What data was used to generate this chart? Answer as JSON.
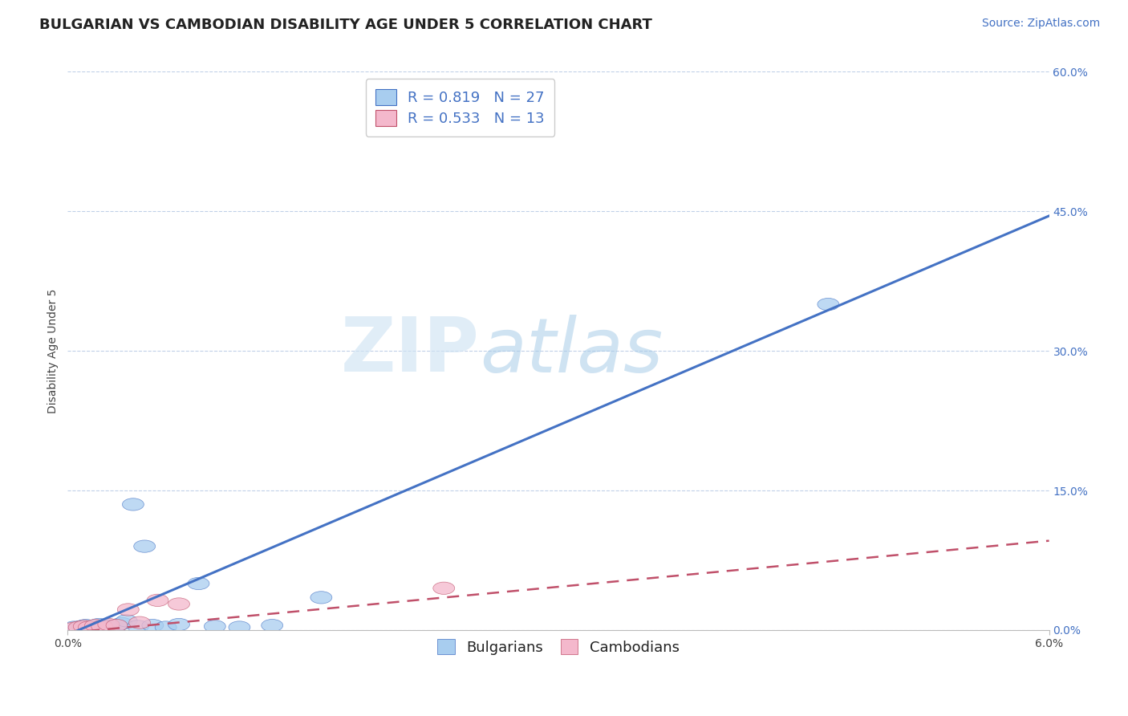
{
  "title": "BULGARIAN VS CAMBODIAN DISABILITY AGE UNDER 5 CORRELATION CHART",
  "source": "Source: ZipAtlas.com",
  "ylabel": "Disability Age Under 5",
  "xlim": [
    0.0,
    6.0
  ],
  "ylim": [
    0.0,
    60.0
  ],
  "y_ticks_right": [
    0.0,
    15.0,
    30.0,
    45.0,
    60.0
  ],
  "y_tick_labels_right": [
    "0.0%",
    "15.0%",
    "30.0%",
    "45.0%",
    "60.0%"
  ],
  "watermark_zip": "ZIP",
  "watermark_atlas": "atlas",
  "legend_bulgarian_R": "0.819",
  "legend_bulgarian_N": "27",
  "legend_cambodian_R": "0.533",
  "legend_cambodian_N": "13",
  "bulgarian_color": "#A8CDEF",
  "cambodian_color": "#F4B8CC",
  "bulgarian_line_color": "#4472C4",
  "cambodian_line_color": "#C0506A",
  "bg_color": "#FFFFFF",
  "grid_color": "#C0D0E8",
  "bulgarian_line_slope": 7.5,
  "bulgarian_line_intercept": -0.5,
  "cambodian_line_slope": 1.65,
  "cambodian_line_intercept": -0.3,
  "title_fontsize": 13,
  "axis_label_fontsize": 10,
  "tick_fontsize": 10,
  "legend_fontsize": 13,
  "source_fontsize": 10,
  "bulgarian_points_x": [
    0.04,
    0.07,
    0.09,
    0.11,
    0.13,
    0.15,
    0.17,
    0.19,
    0.21,
    0.23,
    0.26,
    0.28,
    0.3,
    0.33,
    0.36,
    0.4,
    0.43,
    0.47,
    0.52,
    0.6,
    0.68,
    0.8,
    0.9,
    1.05,
    1.25,
    1.55,
    4.65
  ],
  "bulgarian_points_y": [
    0.3,
    0.2,
    0.4,
    0.5,
    0.3,
    0.4,
    0.2,
    0.6,
    0.3,
    0.5,
    0.4,
    0.3,
    0.5,
    0.7,
    1.0,
    13.5,
    0.4,
    9.0,
    0.5,
    0.3,
    0.6,
    5.0,
    0.4,
    0.3,
    0.5,
    3.5,
    35.0
  ],
  "cambodian_points_x": [
    0.04,
    0.07,
    0.1,
    0.13,
    0.17,
    0.21,
    0.25,
    0.3,
    0.37,
    0.44,
    0.55,
    0.68,
    2.3
  ],
  "cambodian_points_y": [
    0.2,
    0.3,
    0.4,
    0.3,
    0.5,
    0.4,
    0.6,
    0.5,
    2.2,
    0.8,
    3.2,
    2.8,
    4.5
  ]
}
